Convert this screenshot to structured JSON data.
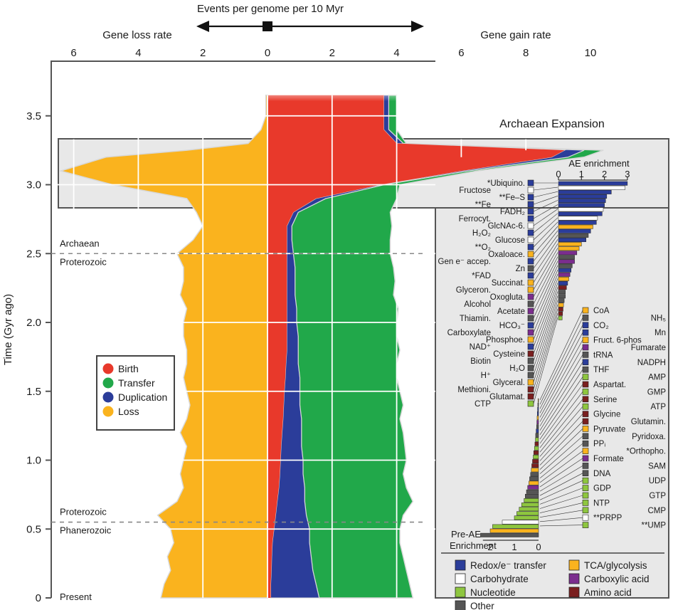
{
  "chart_data": {
    "type": "area",
    "top_axis": {
      "title": "Events per genome per 10 Myr",
      "left_label": "Gene loss rate",
      "right_label": "Gene gain rate",
      "loss_ticks": [
        6,
        4,
        2
      ],
      "gain_ticks": [
        0,
        2,
        4,
        6,
        8,
        10
      ],
      "range_loss": [
        0,
        6.5
      ],
      "range_gain": [
        0,
        10.5
      ]
    },
    "y_axis": {
      "label": "Time (Gyr ago)",
      "ticks": [
        0,
        0.5,
        1.0,
        1.5,
        2.0,
        2.5,
        3.0,
        3.5
      ],
      "range": [
        0,
        3.7
      ]
    },
    "eon_labels": [
      {
        "upper": "Archaean",
        "lower": "Proterozoic",
        "time": 2.5
      },
      {
        "upper": "Proterozoic",
        "lower": "Phanerozoic",
        "time": 0.55
      }
    ],
    "present_label": "Present",
    "legend": [
      {
        "name": "Birth",
        "color": "#e8392b"
      },
      {
        "name": "Transfer",
        "color": "#21a84a"
      },
      {
        "name": "Duplication",
        "color": "#2b3d9a"
      },
      {
        "name": "Loss",
        "color": "#fab31e"
      }
    ],
    "series": {
      "time": [
        0,
        0.1,
        0.2,
        0.3,
        0.4,
        0.5,
        0.6,
        0.7,
        0.8,
        0.9,
        1.0,
        1.1,
        1.2,
        1.3,
        1.4,
        1.5,
        1.6,
        1.7,
        1.8,
        1.9,
        2.0,
        2.1,
        2.2,
        2.3,
        2.4,
        2.5,
        2.6,
        2.7,
        2.8,
        2.9,
        3.0,
        3.1,
        3.2,
        3.25,
        3.3,
        3.4,
        3.5,
        3.6,
        3.65
      ],
      "birth_cum": [
        0.1,
        0.1,
        0.12,
        0.13,
        0.15,
        0.2,
        0.25,
        0.3,
        0.35,
        0.38,
        0.4,
        0.42,
        0.45,
        0.48,
        0.5,
        0.52,
        0.55,
        0.57,
        0.6,
        0.6,
        0.6,
        0.6,
        0.6,
        0.6,
        0.6,
        0.6,
        0.6,
        0.6,
        0.8,
        1.5,
        3.5,
        6.0,
        8.8,
        9.2,
        4.0,
        3.6,
        3.6,
        3.6,
        3.6
      ],
      "duplication_cum": [
        1.6,
        1.5,
        1.4,
        1.35,
        1.3,
        1.3,
        1.2,
        1.15,
        1.15,
        1.1,
        1.1,
        1.05,
        1.05,
        1.05,
        1.0,
        1.0,
        1.0,
        0.95,
        0.95,
        0.95,
        0.9,
        0.9,
        0.85,
        0.85,
        0.85,
        0.8,
        0.75,
        0.75,
        0.95,
        1.8,
        3.6,
        6.2,
        9.3,
        9.8,
        4.2,
        3.75,
        3.75,
        3.75,
        3.75
      ],
      "transfer_cum": [
        4.5,
        4.4,
        4.3,
        4.2,
        4.1,
        4.1,
        4.2,
        4.5,
        4.3,
        4.2,
        4.3,
        4.25,
        4.2,
        4.1,
        4.2,
        4.1,
        4.0,
        4.0,
        4.1,
        4.0,
        4.0,
        4.05,
        3.9,
        3.95,
        3.9,
        3.8,
        3.8,
        3.85,
        3.8,
        4.0,
        4.1,
        6.5,
        9.8,
        10.4,
        4.3,
        4.0,
        4.0,
        4.0,
        4.0
      ],
      "loss": [
        3.3,
        3.2,
        3.0,
        3.1,
        2.9,
        3.0,
        3.4,
        2.8,
        2.6,
        2.7,
        2.6,
        2.5,
        2.7,
        2.5,
        2.4,
        2.5,
        2.6,
        2.5,
        2.5,
        2.6,
        2.6,
        2.5,
        2.7,
        2.6,
        2.6,
        2.8,
        2.3,
        2.0,
        2.2,
        2.5,
        4.8,
        6.4,
        5.0,
        2.5,
        0.6,
        0.2,
        0.05,
        0.05,
        0.05
      ]
    },
    "inset": {
      "title": "Archaean Expansion",
      "ae_axis_title": "AE enrichment",
      "ae_ticks": [
        0,
        1,
        2,
        3
      ],
      "pre_axis_title_line1": "Pre-AE",
      "pre_axis_title_line2": "Enrichment",
      "pre_ticks": [
        2,
        1,
        0
      ],
      "categories": [
        {
          "name": "Redox/e⁻ transfer",
          "color": "#2b3d9a"
        },
        {
          "name": "Carbohydrate",
          "color": "#ffffff"
        },
        {
          "name": "Nucleotide",
          "color": "#8ec63f"
        },
        {
          "name": "Other",
          "color": "#555555"
        },
        {
          "name": "TCA/glycolysis",
          "color": "#fab31e"
        },
        {
          "name": "Carboxylic acid",
          "color": "#7b2d8e"
        },
        {
          "name": "Amino acid",
          "color": "#7a1f1f"
        }
      ],
      "left_labels": [
        {
          "text": "*Ubiquino.",
          "cat": 0
        },
        {
          "text": "Fructose",
          "cat": 1
        },
        {
          "text": "**Fe–S",
          "cat": 0
        },
        {
          "text": "**Fe",
          "cat": 0
        },
        {
          "text": "FADH₂",
          "cat": 0
        },
        {
          "text": "Ferrocyt.",
          "cat": 0
        },
        {
          "text": "GlcNAc-6.",
          "cat": 1
        },
        {
          "text": "H₂O₂",
          "cat": 0
        },
        {
          "text": "Glucose",
          "cat": 1
        },
        {
          "text": "**O₂",
          "cat": 0
        },
        {
          "text": "Oxaloace.",
          "cat": 4
        },
        {
          "text": "Gen e⁻ accep.",
          "cat": 0
        },
        {
          "text": "Zn",
          "cat": 3
        },
        {
          "text": "*FAD",
          "cat": 0
        },
        {
          "text": "Succinat.",
          "cat": 4
        },
        {
          "text": "Glyceron.",
          "cat": 4
        },
        {
          "text": "Oxogluta.",
          "cat": 5
        },
        {
          "text": "Alcohol",
          "cat": 3
        },
        {
          "text": "Acetate",
          "cat": 5
        },
        {
          "text": "Thiamin.",
          "cat": 3
        },
        {
          "text": "HCO₃⁻",
          "cat": 0
        },
        {
          "text": "Carboxylate",
          "cat": 5
        },
        {
          "text": "Phosphoe.",
          "cat": 4
        },
        {
          "text": "NAD⁺",
          "cat": 0
        },
        {
          "text": "Cysteine",
          "cat": 6
        },
        {
          "text": "Biotin",
          "cat": 3
        },
        {
          "text": "H₂O",
          "cat": 3
        },
        {
          "text": "H⁺",
          "cat": 3
        },
        {
          "text": "Glyceral.",
          "cat": 4
        },
        {
          "text": "Methioni.",
          "cat": 6
        },
        {
          "text": "Glutamat.",
          "cat": 6
        },
        {
          "text": "CTP",
          "cat": 2
        }
      ],
      "right_labels": [
        {
          "text": "CoA",
          "cat": 4
        },
        {
          "text": "NH₅",
          "cat": 3
        },
        {
          "text": "CO₂",
          "cat": 0
        },
        {
          "text": "Mn",
          "cat": 0
        },
        {
          "text": "Fruct. 6-phos",
          "cat": 4
        },
        {
          "text": "Fumarate",
          "cat": 5
        },
        {
          "text": "tRNA",
          "cat": 3
        },
        {
          "text": "NADPH",
          "cat": 0
        },
        {
          "text": "THF",
          "cat": 3
        },
        {
          "text": "AMP",
          "cat": 2
        },
        {
          "text": "Aspartat.",
          "cat": 6
        },
        {
          "text": "GMP",
          "cat": 2
        },
        {
          "text": "Serine",
          "cat": 6
        },
        {
          "text": "ATP",
          "cat": 2
        },
        {
          "text": "Glycine",
          "cat": 6
        },
        {
          "text": "Glutamin.",
          "cat": 6
        },
        {
          "text": "Pyruvate",
          "cat": 4
        },
        {
          "text": "Pyridoxa.",
          "cat": 3
        },
        {
          "text": "PPᵢ",
          "cat": 3
        },
        {
          "text": "*Orthopho.",
          "cat": 4
        },
        {
          "text": "Formate",
          "cat": 5
        },
        {
          "text": "SAM",
          "cat": 3
        },
        {
          "text": "DNA",
          "cat": 3
        },
        {
          "text": "UDP",
          "cat": 2
        },
        {
          "text": "GDP",
          "cat": 2
        },
        {
          "text": "GTP",
          "cat": 2
        },
        {
          "text": "NTP",
          "cat": 2
        },
        {
          "text": "CMP",
          "cat": 2
        },
        {
          "text": "**PRPP",
          "cat": 1
        },
        {
          "text": "**UMP",
          "cat": 2
        }
      ],
      "ae_values": [
        3.0,
        2.9,
        2.3,
        2.1,
        2.05,
        2.0,
        1.95,
        1.9,
        1.7,
        1.65,
        1.5,
        1.4,
        1.3,
        1.2,
        1.0,
        0.9,
        0.8,
        0.7,
        0.7,
        0.6,
        0.55,
        0.5,
        0.45,
        0.4,
        0.35,
        0.3,
        0.3,
        0.25,
        0.22,
        0.2,
        0.18,
        0.16
      ],
      "pre_values": [
        0.02,
        0.03,
        0.04,
        0.05,
        0.06,
        0.07,
        0.08,
        0.1,
        0.12,
        0.13,
        0.15,
        0.17,
        0.2,
        0.22,
        0.25,
        0.28,
        0.3,
        0.33,
        0.37,
        0.4,
        0.45,
        0.5,
        0.55,
        0.6,
        0.7,
        0.8,
        0.9,
        1.0,
        1.5,
        1.9,
        2.0,
        2.4
      ]
    }
  }
}
